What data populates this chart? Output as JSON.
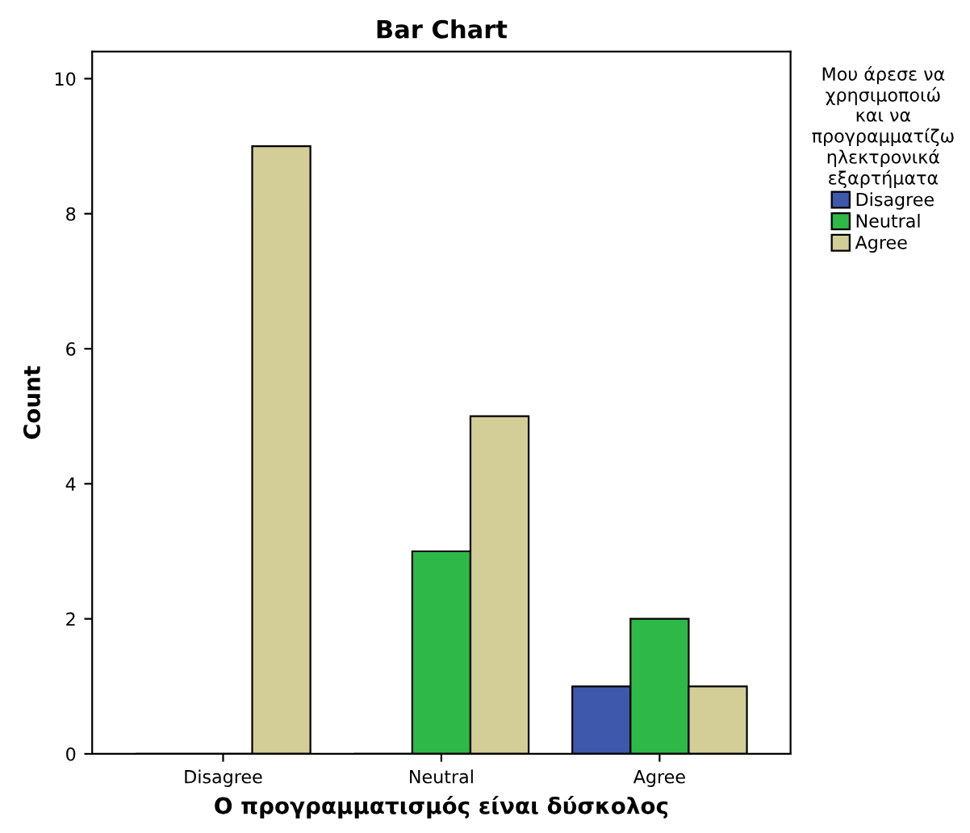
{
  "chart_data": {
    "type": "bar",
    "title": "Bar Chart",
    "xlabel": "Ο προγραμματισμός είναι δύσκολος",
    "ylabel": "Count",
    "legend_title": "Μου άρεσε να χρησιμοποιώ και να προγραμματίζω ηλεκτρονικά εξαρτήματα",
    "categories": [
      "Disagree",
      "Neutral",
      "Agree"
    ],
    "series": [
      {
        "name": "Disagree",
        "color": "#3e58ac",
        "values": [
          0,
          0,
          1
        ]
      },
      {
        "name": "Neutral",
        "color": "#2eb848",
        "values": [
          0,
          3,
          2
        ]
      },
      {
        "name": "Agree",
        "color": "#d3ce97",
        "values": [
          9,
          5,
          1
        ]
      }
    ],
    "ylim": [
      0,
      10.4
    ],
    "yticks": [
      0,
      2,
      4,
      6,
      8,
      10
    ],
    "grid": false,
    "legend": "right"
  }
}
